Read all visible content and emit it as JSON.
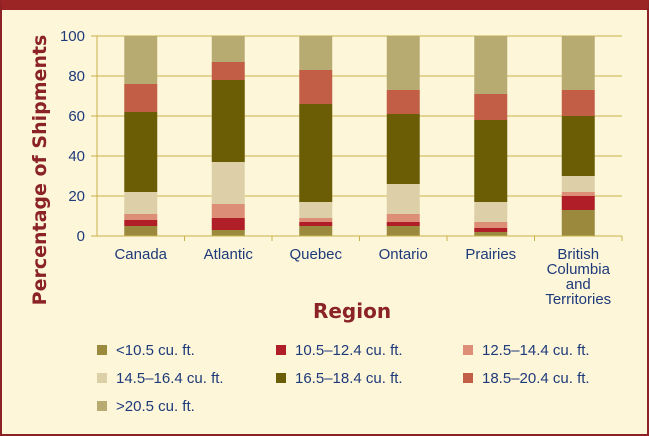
{
  "chart_data": {
    "type": "bar",
    "stacked": true,
    "xlabel": "Region",
    "ylabel": "Percentage of Shipments",
    "ylim": [
      0,
      100
    ],
    "yticks": [
      0,
      20,
      40,
      60,
      80,
      100
    ],
    "grid": true,
    "legend_position": "bottom",
    "categories": [
      [
        "Canada"
      ],
      [
        "Atlantic"
      ],
      [
        "Quebec"
      ],
      [
        "Ontario"
      ],
      [
        "Prairies"
      ],
      [
        "British",
        "Columbia",
        "and",
        "Territories"
      ]
    ],
    "series": [
      {
        "name": "<10.5 cu. ft.",
        "color": "#9b8a3e",
        "values": [
          5,
          3,
          5,
          5,
          2,
          13
        ]
      },
      {
        "name": "10.5–12.4 cu. ft.",
        "color": "#b01f28",
        "values": [
          3,
          6,
          2,
          2,
          2,
          7
        ]
      },
      {
        "name": "12.5–14.4 cu. ft.",
        "color": "#dd8e76",
        "values": [
          3,
          7,
          2,
          4,
          3,
          2
        ]
      },
      {
        "name": "14.5–16.4 cu. ft.",
        "color": "#ddd0a8",
        "values": [
          11,
          21,
          8,
          15,
          10,
          8
        ]
      },
      {
        "name": "16.5–18.4 cu. ft.",
        "color": "#6b5c06",
        "values": [
          40,
          41,
          49,
          35,
          41,
          30
        ]
      },
      {
        "name": "18.5–20.4 cu. ft.",
        "color": "#c25e45",
        "values": [
          14,
          9,
          17,
          12,
          13,
          13
        ]
      },
      {
        "name": ">20.5 cu. ft.",
        "color": "#b8ab72",
        "values": [
          24,
          13,
          17,
          27,
          29,
          27
        ]
      }
    ]
  }
}
